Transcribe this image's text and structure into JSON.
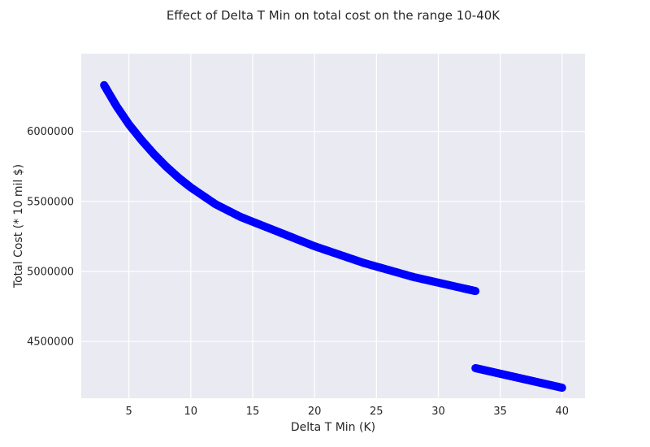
{
  "chart_data": {
    "type": "scatter",
    "title": "Effect of Delta T Min on total cost on the range 10-40K",
    "xlabel": "Delta T Min (K)",
    "ylabel": "Total Cost (* 10 mil $)",
    "xlim": [
      1.15,
      41.85
    ],
    "ylim": [
      4095000,
      6555000
    ],
    "xticks": [
      5,
      10,
      15,
      20,
      25,
      30,
      35,
      40
    ],
    "yticks": [
      4500000,
      5000000,
      5500000,
      6000000
    ],
    "ytick_labels": [
      "4500000",
      "5000000",
      "5500000",
      "6000000"
    ],
    "xtick_labels": [
      "5",
      "10",
      "15",
      "20",
      "25",
      "30",
      "35",
      "40"
    ],
    "grid": true,
    "marker_color": "#0000ff",
    "background_color": "#eaeaf2",
    "series": [
      {
        "x": [
          3,
          4,
          5,
          6,
          7,
          8,
          9,
          10,
          12,
          14,
          16,
          18,
          20,
          22,
          24,
          26,
          28,
          30,
          32,
          33
        ],
        "y": [
          6330000,
          6180000,
          6050000,
          5940000,
          5840000,
          5750000,
          5670000,
          5600000,
          5480000,
          5390000,
          5320000,
          5250000,
          5180000,
          5120000,
          5060000,
          5010000,
          4960000,
          4920000,
          4880000,
          4860000
        ]
      },
      {
        "x": [
          33,
          34,
          35,
          36,
          37,
          38,
          39,
          40
        ],
        "y": [
          4310000,
          4290000,
          4270000,
          4250000,
          4230000,
          4210000,
          4190000,
          4170000
        ]
      }
    ]
  }
}
